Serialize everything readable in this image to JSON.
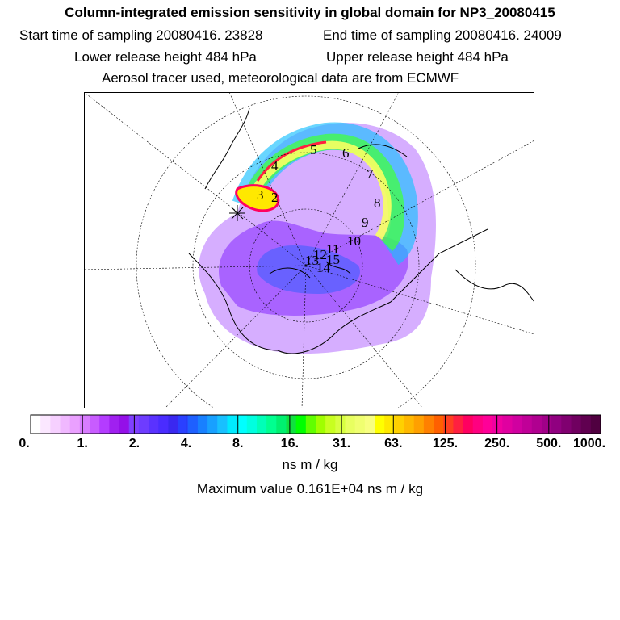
{
  "title": "Column-integrated emission sensitivity in global domain for NP3_20080415",
  "start_label": "Start time of sampling 20080416. 23828",
  "end_label": "End time of sampling 20080416. 24009",
  "lower_label": "Lower release height  484 hPa",
  "upper_label": "Upper release height  484 hPa",
  "tracer_label": "Aerosol tracer used, meteorological data are from ECMWF",
  "units_label": "ns m / kg",
  "max_label": "Maximum value  0.161E+04 ns m / kg",
  "chart_data": {
    "type": "heatmap",
    "projection": "polar stereographic (north pole)",
    "colorbar": {
      "tick_labels": [
        "0.",
        "1.",
        "2.",
        "4.",
        "8.",
        "16.",
        "31.",
        "63.",
        "125.",
        "250.",
        "500.",
        "1000."
      ],
      "tick_values": [
        0,
        1,
        2,
        4,
        8,
        16,
        31,
        63,
        125,
        250,
        500,
        1000
      ],
      "units": "ns m / kg",
      "colors": [
        "#ffffff",
        "#fbe7ff",
        "#f6d0ff",
        "#f0b8ff",
        "#eaa0ff",
        "#d87cff",
        "#c85cff",
        "#b43cff",
        "#a020f0",
        "#9410e8",
        "#8040ff",
        "#6e3cff",
        "#5a32ff",
        "#4a2cff",
        "#3a28f0",
        "#2a40ff",
        "#1e60ff",
        "#1880ff",
        "#18a0ff",
        "#18c0ff",
        "#00eaff",
        "#00ffff",
        "#00ffe0",
        "#00ffb8",
        "#00ff90",
        "#00f070",
        "#10e040",
        "#00ff00",
        "#60ff00",
        "#a0ff00",
        "#c8ff20",
        "#d8ff40",
        "#e8ff60",
        "#f0ff70",
        "#f8ff80",
        "#ffff00",
        "#ffe800",
        "#ffd000",
        "#ffb800",
        "#ffa000",
        "#ff8000",
        "#ff6000",
        "#ff4020",
        "#ff2040",
        "#ff0060",
        "#ff0080",
        "#ff0098",
        "#f000a0",
        "#e000a0",
        "#d000a0",
        "#c00098",
        "#b00090",
        "#a00088",
        "#900080",
        "#800070",
        "#700060",
        "#600050",
        "#500040"
      ]
    },
    "track_labels": [
      "2",
      "3",
      "4",
      "5",
      "6",
      "7",
      "8",
      "9",
      "10",
      "11",
      "12",
      "13",
      "14",
      "15"
    ],
    "maximum_value": 1610,
    "release_marker": "star"
  }
}
